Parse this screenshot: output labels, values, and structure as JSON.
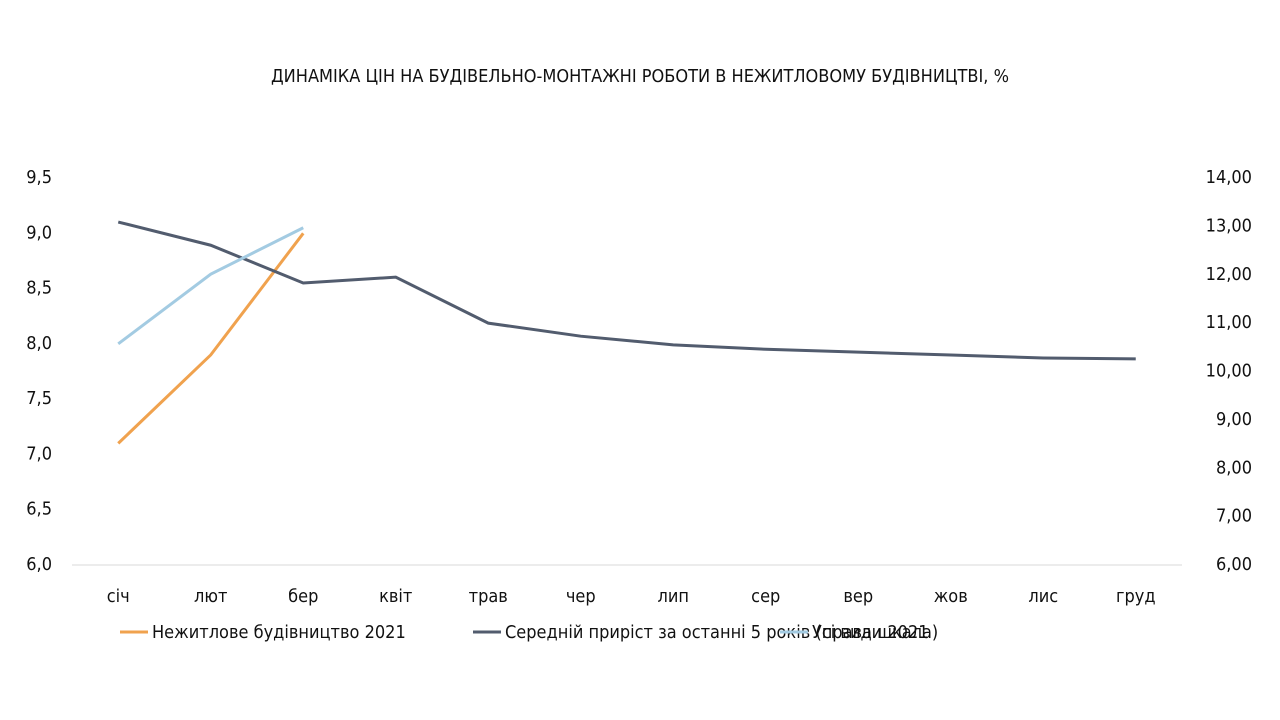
{
  "chart_data": {
    "type": "line",
    "title": "ДИНАМІКА ЦІН НА БУДІВЕЛЬНО-МОНТАЖНІ РОБОТИ В НЕЖИТЛОВОМУ БУДІВНИЦТВІ, %",
    "categories": [
      "січ",
      "лют",
      "бер",
      "квіт",
      "трав",
      "чер",
      "лип",
      "сер",
      "вер",
      "жов",
      "лис",
      "груд"
    ],
    "series": [
      {
        "name": "Нежитлове будівництво 2021",
        "color": "#f0a24e",
        "values": [
          7.1,
          7.9,
          9.0,
          null,
          null,
          null,
          null,
          null,
          null,
          null,
          null,
          null
        ]
      },
      {
        "name": "Середній приріст за останні 5 років (права шкала)",
        "color": "#525c6e",
        "axis": "y2",
        "values": [
          13.09,
          12.61,
          11.83,
          11.95,
          11.0,
          10.73,
          10.55,
          10.46,
          10.4,
          10.34,
          10.28,
          10.26
        ]
      },
      {
        "name": "Усі види 2021",
        "color": "#a3cbe2",
        "values": [
          8.0,
          8.63,
          9.05,
          null,
          null,
          null,
          null,
          null,
          null,
          null,
          null,
          null
        ]
      }
    ],
    "ylim": [
      6.0,
      9.5
    ],
    "yticks": [
      {
        "value": 6.0,
        "label": "6,0"
      },
      {
        "value": 6.5,
        "label": "6,5"
      },
      {
        "value": 7.0,
        "label": "7,0"
      },
      {
        "value": 7.5,
        "label": "7,5"
      },
      {
        "value": 8.0,
        "label": "8,0"
      },
      {
        "value": 8.5,
        "label": "8,5"
      },
      {
        "value": 9.0,
        "label": "9,0"
      },
      {
        "value": 9.5,
        "label": "9,5"
      }
    ],
    "y2lim": [
      6.0,
      14.0
    ],
    "y2ticks": [
      {
        "value": 6,
        "label": "6,00"
      },
      {
        "value": 7,
        "label": "7,00"
      },
      {
        "value": 8,
        "label": "8,00"
      },
      {
        "value": 9,
        "label": "9,00"
      },
      {
        "value": 10,
        "label": "10,00"
      },
      {
        "value": 11,
        "label": "11,00"
      },
      {
        "value": 12,
        "label": "12,00"
      },
      {
        "value": 13,
        "label": "13,00"
      },
      {
        "value": 14,
        "label": "14,00"
      }
    ],
    "grid": false,
    "legend": "bottom"
  }
}
